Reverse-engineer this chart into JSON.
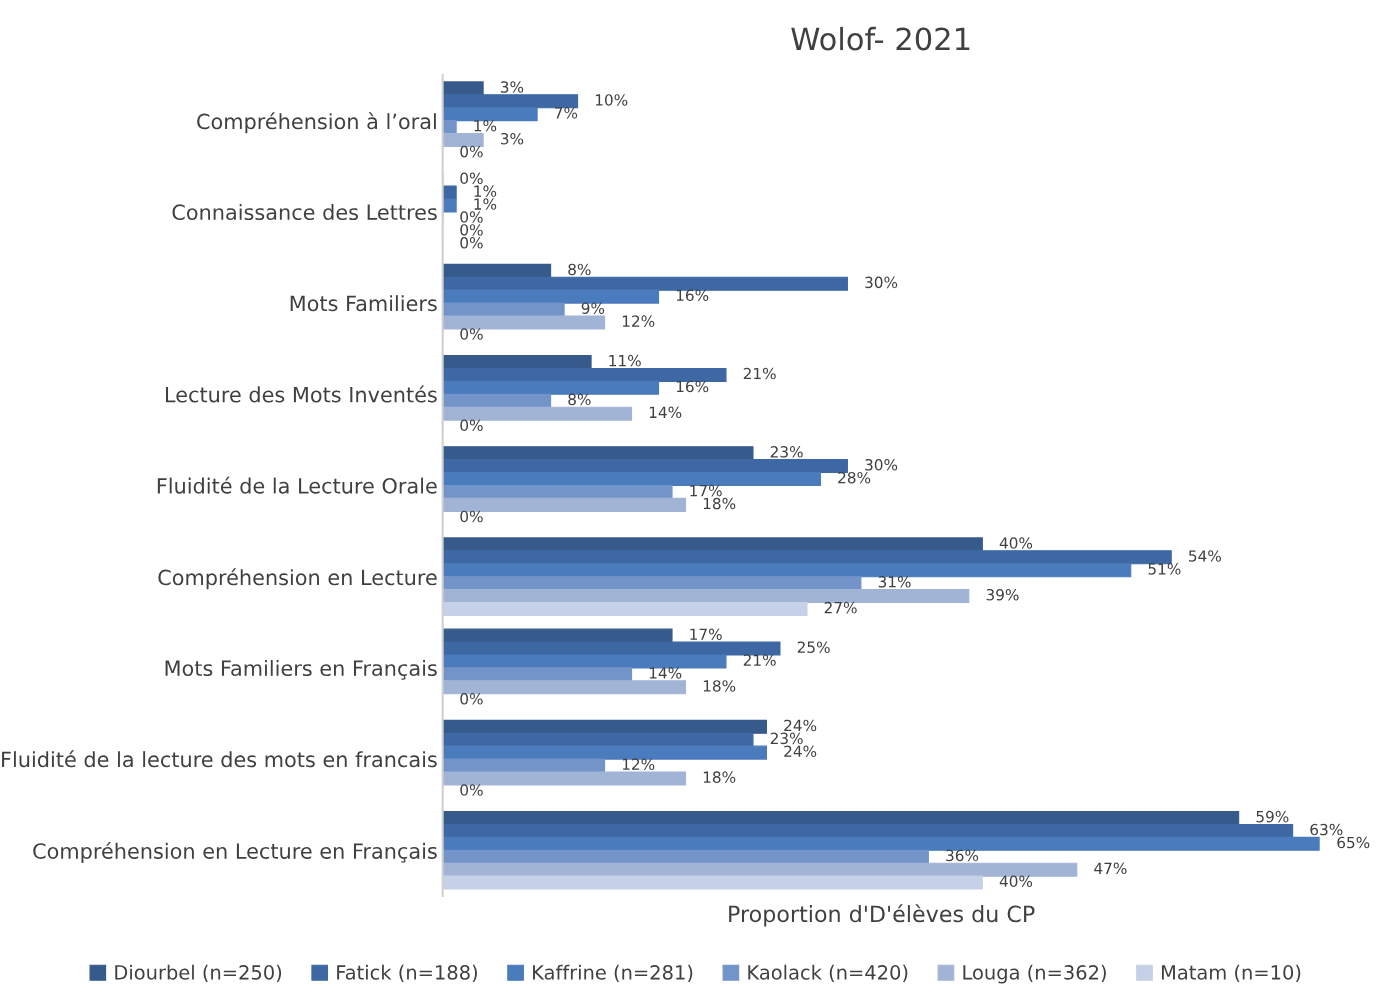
{
  "chart_data": {
    "type": "bar",
    "orientation": "horizontal",
    "title": "Wolof- 2021",
    "xlabel": "Proportion d'D'élèves du CP",
    "categories": [
      "Compréhension à l’oral",
      "Connaissance des Lettres",
      "Mots Familiers",
      "Lecture des Mots Inventés",
      "Fluidité de la Lecture Orale",
      "Compréhension en Lecture",
      "Mots Familiers en Français",
      "Fluidité de la lecture des mots en francais",
      "Compréhension en Lecture en Français"
    ],
    "series": [
      {
        "name": "Diourbel (n=250)",
        "color": "#375a8c",
        "values": [
          3,
          0,
          8,
          11,
          23,
          40,
          17,
          24,
          59
        ],
        "value_labels": [
          "3%",
          "0%",
          "8%",
          "11%",
          "23%",
          "40%",
          "17%",
          "24%",
          "59%"
        ]
      },
      {
        "name": "Fatick (n=188)",
        "color": "#3d68a3",
        "values": [
          10,
          1,
          30,
          21,
          30,
          54,
          25,
          23,
          63
        ],
        "value_labels": [
          "10%",
          "1%",
          "30%",
          "21%",
          "30%",
          "54%",
          "25%",
          "23%",
          "63%"
        ]
      },
      {
        "name": "Kaffrine (n=281)",
        "color": "#4a7bbd",
        "values": [
          7,
          1,
          16,
          16,
          28,
          51,
          21,
          24,
          65
        ],
        "value_labels": [
          "7%",
          "1%",
          "16%",
          "16%",
          "28%",
          "51%",
          "21%",
          "24%",
          "65%"
        ]
      },
      {
        "name": "Kaolack (n=420)",
        "color": "#7394c8",
        "values": [
          1,
          0,
          9,
          8,
          17,
          31,
          14,
          12,
          36
        ],
        "value_labels": [
          "1%",
          "0%",
          "9%",
          "8%",
          "17%",
          "31%",
          "14%",
          "12%",
          "36%"
        ]
      },
      {
        "name": "Louga (n=362)",
        "color": "#a2b4d6",
        "values": [
          3,
          0,
          12,
          14,
          18,
          39,
          18,
          18,
          47
        ],
        "value_labels": [
          "3%",
          "0%",
          "12%",
          "14%",
          "18%",
          "39%",
          "18%",
          "18%",
          "47%"
        ]
      },
      {
        "name": "Matam (n=10)",
        "color": "#c6d0e6",
        "values": [
          0,
          0,
          0,
          0,
          0,
          27,
          0,
          0,
          40
        ],
        "value_labels": [
          "0%",
          "0%",
          "0%",
          "0%",
          "0%",
          "27%",
          "0%",
          "0%",
          "40%"
        ]
      }
    ],
    "tick_labels": "y",
    "grid": false,
    "legend": "bottom"
  }
}
